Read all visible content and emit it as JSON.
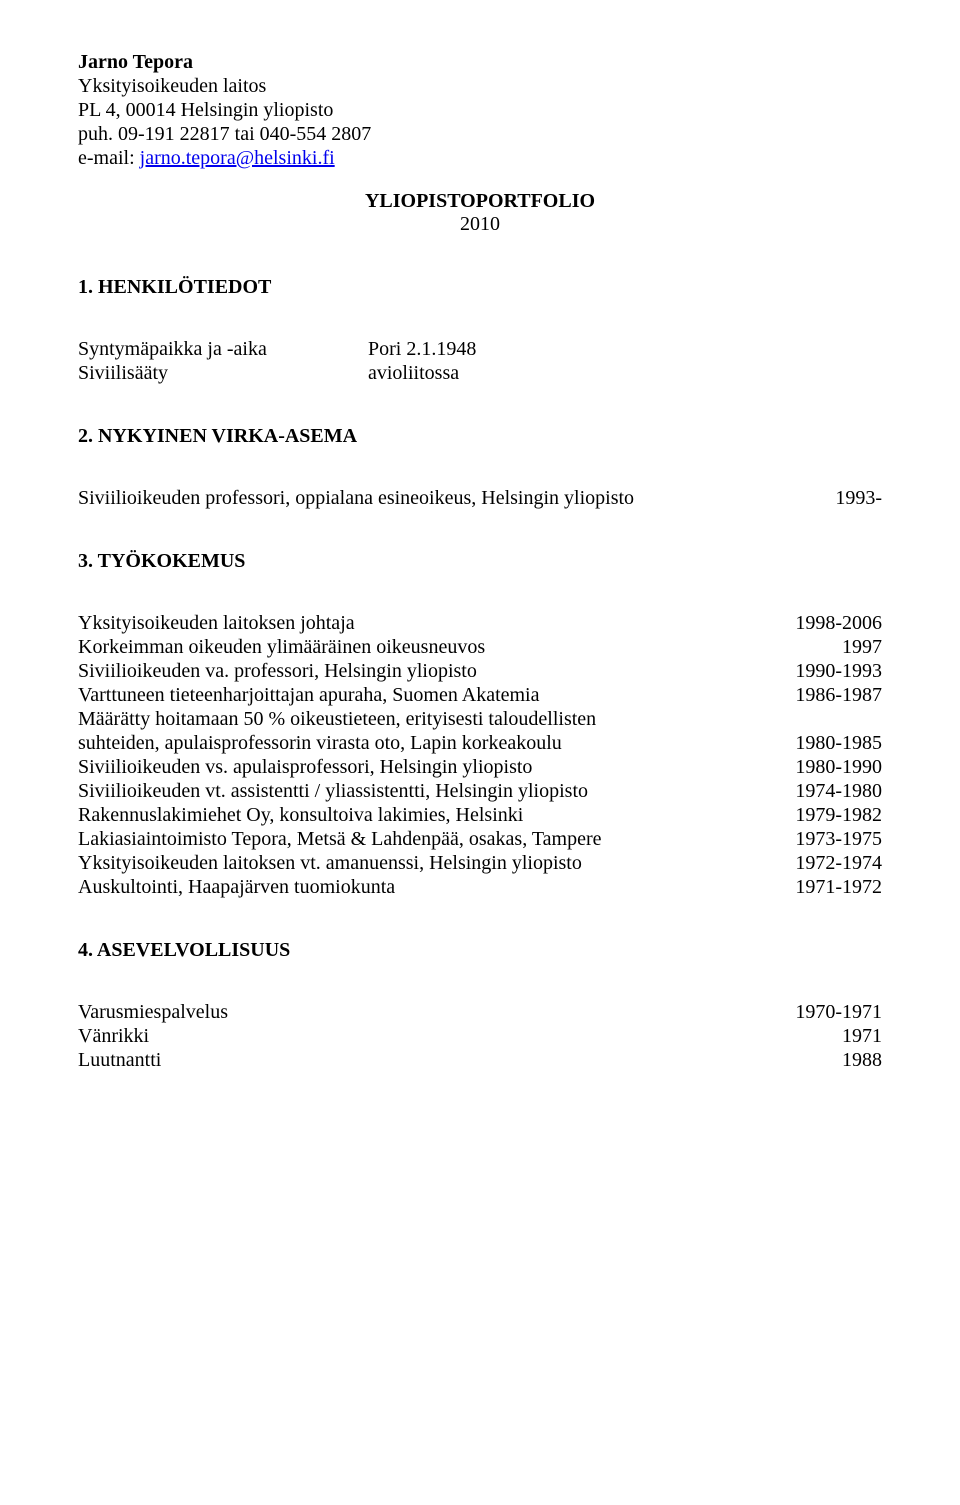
{
  "header": {
    "name": "Jarno Tepora",
    "line2": "Yksityisoikeuden laitos",
    "line3": "PL 4, 00014 Helsingin yliopisto",
    "line4": "puh. 09-191 22817 tai 040-554 2807",
    "email_prefix": "e-mail: ",
    "email": "jarno.tepora@helsinki.fi"
  },
  "doc_title": "YLIOPISTOPORTFOLIO",
  "doc_year": "2010",
  "s1": {
    "title": "1. HENKILÖTIEDOT",
    "row1_label": "Syntymäpaikka ja -aika",
    "row1_value": "Pori 2.1.1948",
    "row2_label": "Siviilisääty",
    "row2_value": "avioliitossa"
  },
  "s2": {
    "title": "2. NYKYINEN VIRKA-ASEMA",
    "row1_left": "Siviilioikeuden professori, oppialana esineoikeus, Helsingin yliopisto",
    "row1_right": "1993-"
  },
  "s3": {
    "title": "3. TYÖKOKEMUS",
    "rows": [
      {
        "left": "Yksityisoikeuden laitoksen johtaja",
        "right": "1998-2006"
      },
      {
        "left": "Korkeimman oikeuden ylimääräinen oikeusneuvos",
        "right": "1997"
      },
      {
        "left": "Siviilioikeuden va. professori, Helsingin yliopisto",
        "right": "1990-1993"
      },
      {
        "left": "Varttuneen tieteenharjoittajan apuraha, Suomen Akatemia",
        "right": "1986-1987"
      },
      {
        "left": "Määrätty hoitamaan 50 % oikeustieteen, erityisesti taloudellisten",
        "right": ""
      },
      {
        "left": "suhteiden, apulaisprofessorin virasta oto, Lapin korkeakoulu",
        "right": "1980-1985"
      },
      {
        "left": "Siviilioikeuden vs. apulaisprofessori, Helsingin yliopisto",
        "right": "1980-1990"
      },
      {
        "left": "Siviilioikeuden vt. assistentti / yliassistentti, Helsingin yliopisto",
        "right": "1974-1980"
      },
      {
        "left": "Rakennuslakimiehet Oy, konsultoiva lakimies, Helsinki",
        "right": "1979-1982"
      },
      {
        "left": "Lakiasiaintoimisto Tepora, Metsä & Lahdenpää, osakas, Tampere",
        "right": "1973-1975"
      },
      {
        "left": "Yksityisoikeuden laitoksen vt. amanuenssi, Helsingin yliopisto",
        "right": "1972-1974"
      },
      {
        "left": "Auskultointi, Haapajärven tuomiokunta",
        "right": "1971-1972"
      }
    ]
  },
  "s4": {
    "title": "4. ASEVELVOLLISUUS",
    "rows": [
      {
        "left": "Varusmiespalvelus",
        "right": "1970-1971"
      },
      {
        "left": "Vänrikki",
        "right": "1971"
      },
      {
        "left": "Luutnantti",
        "right": "1988"
      }
    ]
  }
}
